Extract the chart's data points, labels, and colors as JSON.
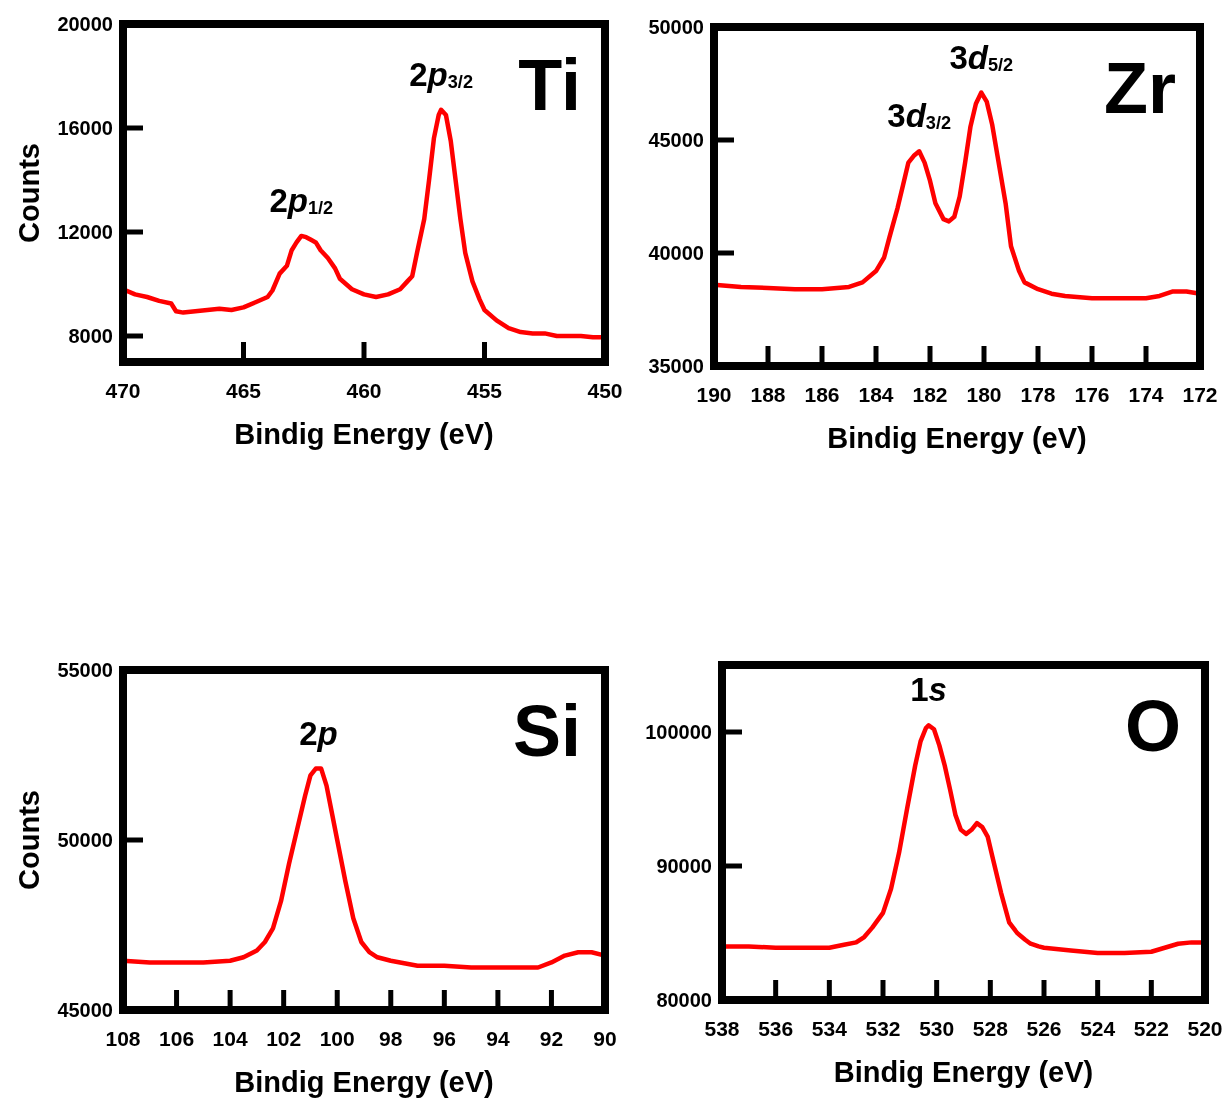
{
  "chart_data": [
    {
      "type": "line",
      "xlabel": "Bindig Energy (eV)",
      "ylabel": "Counts",
      "xlim": [
        470,
        450
      ],
      "xticks": [
        470,
        465,
        460,
        455,
        450
      ],
      "ylim": [
        7000,
        20000
      ],
      "yticks": [
        8000,
        12000,
        16000,
        20000
      ],
      "grid": false,
      "marker": "none",
      "line_style": "solid",
      "x": [
        470,
        469.5,
        469,
        468.5,
        468,
        467.8,
        467.5,
        467,
        466.5,
        466,
        465.5,
        465,
        464.5,
        464,
        463.8,
        463.5,
        463.2,
        463,
        462.8,
        462.6,
        462.4,
        462.2,
        462,
        461.8,
        461.5,
        461.2,
        461,
        460.5,
        460,
        459.5,
        459,
        458.5,
        458.2,
        458,
        457.8,
        457.5,
        457.3,
        457.1,
        456.9,
        456.8,
        456.6,
        456.4,
        456.2,
        456,
        455.8,
        455.5,
        455.2,
        455,
        454.5,
        454,
        453.5,
        453,
        452.5,
        452,
        451.5,
        451,
        450.5,
        450
      ],
      "series": [
        {
          "color": "#ff0000",
          "values": [
            9800,
            9600,
            9500,
            9350,
            9250,
            8950,
            8900,
            8950,
            9000,
            9050,
            9000,
            9100,
            9300,
            9500,
            9750,
            10400,
            10700,
            11300,
            11600,
            11850,
            11800,
            11700,
            11600,
            11300,
            11000,
            10600,
            10200,
            9800,
            9600,
            9500,
            9600,
            9800,
            10100,
            10300,
            11200,
            12500,
            14000,
            15600,
            16500,
            16700,
            16500,
            15500,
            14000,
            12500,
            11200,
            10100,
            9400,
            9000,
            8600,
            8300,
            8150,
            8100,
            8100,
            8000,
            8000,
            8000,
            7950,
            7950
          ]
        }
      ],
      "annotations": [
        {
          "text": "2p$_{1/2}$",
          "x": 462.6,
          "y": 11850
        },
        {
          "text": "2p$_{3/2}$",
          "x": 456.8,
          "y": 16700
        },
        "Ti"
      ]
    },
    {
      "type": "line",
      "xlabel": "Bindig Energy (eV)",
      "xlim": [
        190,
        172
      ],
      "xticks": [
        190,
        188,
        186,
        184,
        182,
        180,
        178,
        176,
        174,
        172
      ],
      "ylim": [
        35000,
        50000
      ],
      "yticks": [
        35000,
        40000,
        45000,
        50000
      ],
      "grid": false,
      "marker": "none",
      "line_style": "solid",
      "x": [
        190,
        189,
        188,
        187,
        186,
        185,
        184.5,
        184,
        183.7,
        183.5,
        183.2,
        183,
        182.8,
        182.6,
        182.4,
        182.2,
        182,
        181.8,
        181.5,
        181.3,
        181.1,
        180.9,
        180.7,
        180.5,
        180.3,
        180.1,
        179.9,
        179.7,
        179.5,
        179.2,
        179,
        178.7,
        178.5,
        178,
        177.5,
        177,
        176,
        175,
        174,
        173.5,
        173,
        172.5,
        172
      ],
      "series": [
        {
          "color": "#ff0000",
          "values": [
            38600,
            38500,
            38450,
            38400,
            38400,
            38500,
            38700,
            39200,
            39800,
            40700,
            42000,
            43000,
            44000,
            44300,
            44500,
            44000,
            43200,
            42200,
            41500,
            41400,
            41600,
            42500,
            44000,
            45600,
            46600,
            47100,
            46700,
            45700,
            44300,
            42200,
            40300,
            39200,
            38700,
            38400,
            38200,
            38100,
            38000,
            38000,
            38000,
            38100,
            38300,
            38300,
            38200
          ]
        }
      ],
      "annotations": [
        {
          "text": "3d$_{3/2}$",
          "x": 182.4,
          "y": 44500
        },
        {
          "text": "3d$_{5/2}$",
          "x": 180.1,
          "y": 47100
        },
        "Zr"
      ]
    },
    {
      "type": "line",
      "xlabel": "Bindig Energy (eV)",
      "ylabel": "Counts",
      "xlim": [
        108,
        90
      ],
      "xticks": [
        108,
        106,
        104,
        102,
        100,
        98,
        96,
        94,
        92,
        90
      ],
      "ylim": [
        45000,
        55000
      ],
      "yticks": [
        45000,
        50000,
        55000
      ],
      "grid": false,
      "marker": "none",
      "line_style": "solid",
      "x": [
        108,
        107,
        106,
        105,
        104,
        103.5,
        103,
        102.7,
        102.4,
        102.1,
        101.8,
        101.5,
        101.2,
        101,
        100.8,
        100.6,
        100.4,
        100.2,
        100,
        99.7,
        99.4,
        99.1,
        98.8,
        98.5,
        98,
        97,
        96,
        95,
        94,
        93,
        92.5,
        92,
        91.5,
        91,
        90.5,
        90
      ],
      "series": [
        {
          "color": "#ff0000",
          "values": [
            46450,
            46400,
            46400,
            46400,
            46450,
            46550,
            46750,
            47000,
            47400,
            48200,
            49300,
            50300,
            51300,
            51900,
            52100,
            52100,
            51600,
            50800,
            50000,
            48800,
            47700,
            47000,
            46700,
            46550,
            46450,
            46300,
            46300,
            46250,
            46250,
            46250,
            46250,
            46400,
            46600,
            46700,
            46700,
            46600
          ]
        }
      ],
      "annotations": [
        {
          "text": "2p",
          "x": 100.7,
          "y": 52100
        },
        "Si"
      ]
    },
    {
      "type": "line",
      "xlabel": "Bindig Energy (eV)",
      "xlim": [
        538,
        520
      ],
      "xticks": [
        538,
        536,
        534,
        532,
        530,
        528,
        526,
        524,
        522,
        520
      ],
      "ylim": [
        80000,
        105000
      ],
      "yticks": [
        80000,
        90000,
        100000
      ],
      "grid": false,
      "marker": "none",
      "line_style": "solid",
      "x": [
        538,
        537,
        536,
        535,
        534,
        533.5,
        533,
        532.7,
        532.4,
        532,
        531.7,
        531.4,
        531.1,
        530.8,
        530.6,
        530.4,
        530.3,
        530.1,
        529.9,
        529.7,
        529.5,
        529.3,
        529.1,
        528.9,
        528.7,
        528.5,
        528.3,
        528.1,
        527.9,
        527.6,
        527.3,
        527,
        526.7,
        526.5,
        526.2,
        526,
        525,
        524,
        523,
        522,
        521.5,
        521,
        520.5,
        520
      ],
      "series": [
        {
          "color": "#ff0000",
          "values": [
            84000,
            84000,
            83900,
            83900,
            83900,
            84100,
            84300,
            84700,
            85400,
            86500,
            88300,
            91000,
            94300,
            97500,
            99300,
            100300,
            100500,
            100200,
            99000,
            97500,
            95700,
            93800,
            92700,
            92400,
            92700,
            93200,
            92900,
            92200,
            90500,
            88000,
            85800,
            85000,
            84500,
            84200,
            84000,
            83900,
            83700,
            83500,
            83500,
            83600,
            83900,
            84200,
            84300,
            84300
          ]
        }
      ],
      "annotations": [
        {
          "text": "1s",
          "x": 530.3,
          "y": 100500
        },
        "O"
      ]
    }
  ]
}
